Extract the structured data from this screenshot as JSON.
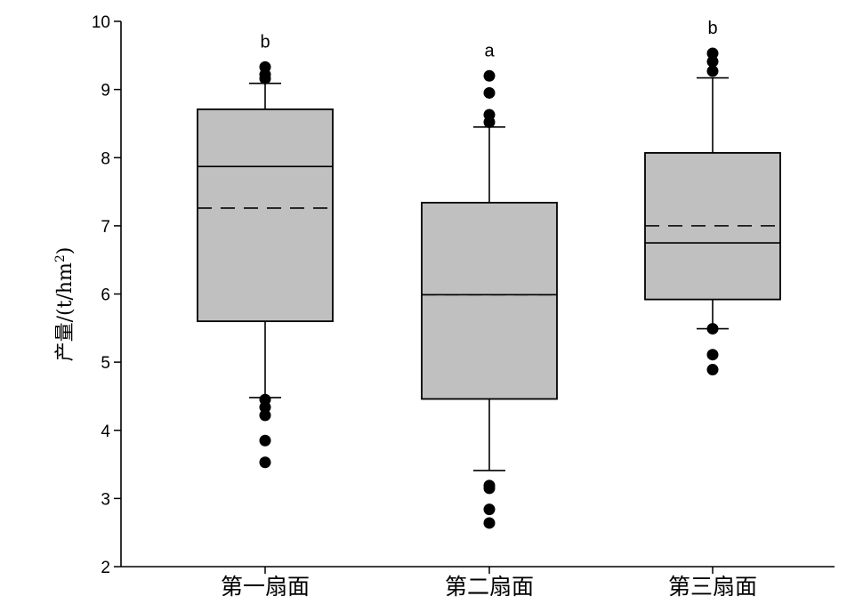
{
  "chart_data": {
    "type": "box",
    "ylabel": "产量/(t/hm²)",
    "ylabel_main": "产量/(t/hm",
    "ylabel_sup": "2",
    "ylabel_close": ")",
    "ylim": [
      2,
      10
    ],
    "yticks": [
      2,
      3,
      4,
      5,
      6,
      7,
      8,
      9,
      10
    ],
    "ytick_labels": [
      "2",
      "3",
      "4",
      "5",
      "6",
      "7",
      "8",
      "9",
      "10"
    ],
    "grid": false,
    "categories": [
      "第一扇面",
      "第二扇面",
      "第三扇面"
    ],
    "box_color": "#c0c0c0",
    "boxes": [
      {
        "label": "第一扇面",
        "whisker_low": 4.48,
        "q1": 5.6,
        "median": 7.87,
        "mean": 7.26,
        "q3": 8.71,
        "whisker_high": 9.09,
        "outliers": [
          9.33,
          9.22,
          9.16,
          4.45,
          4.34,
          4.22,
          3.85,
          3.53
        ],
        "sig": "b"
      },
      {
        "label": "第二扇面",
        "whisker_low": 3.41,
        "q1": 4.46,
        "median": 5.99,
        "mean": 5.99,
        "q3": 7.34,
        "whisker_high": 8.45,
        "outliers": [
          9.2,
          8.95,
          8.63,
          8.52,
          3.19,
          3.15,
          2.84,
          2.64
        ],
        "sig": "a"
      },
      {
        "label": "第三扇面",
        "whisker_low": 5.49,
        "q1": 5.92,
        "median": 6.75,
        "mean": 7.0,
        "q3": 8.07,
        "whisker_high": 9.17,
        "outliers": [
          9.53,
          9.41,
          9.27,
          5.49,
          5.11,
          4.89
        ],
        "sig": "b"
      }
    ]
  }
}
